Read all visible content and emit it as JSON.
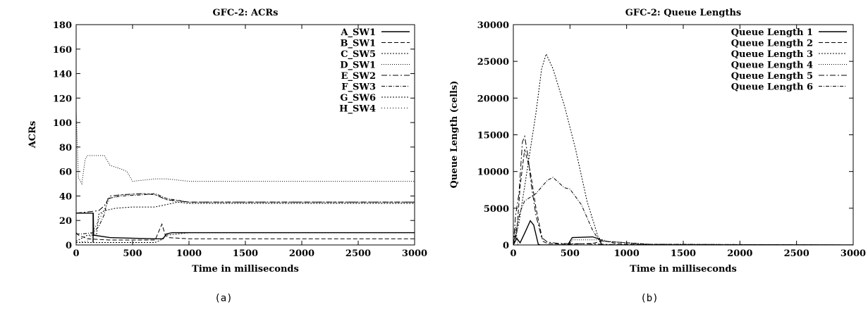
{
  "captions": [
    "(a)",
    "(b)"
  ],
  "chart_data": [
    {
      "type": "line",
      "title": "GFC-2: ACRs",
      "xlabel": "Time in milliseconds",
      "ylabel": "ACRs",
      "xlim": [
        0,
        3000
      ],
      "ylim": [
        0,
        180
      ],
      "xticks": [
        0,
        500,
        1000,
        1500,
        2000,
        2500,
        3000
      ],
      "yticks": [
        0,
        20,
        40,
        60,
        80,
        100,
        120,
        140,
        160,
        180
      ],
      "xtick_labels": [
        "0",
        "500",
        "1000",
        "1500",
        "2000",
        "2500",
        "3000"
      ],
      "ytick_labels": [
        "0",
        "20",
        "40",
        "60",
        "80",
        "100",
        "120",
        "140",
        "160",
        "180"
      ],
      "legend": "top-right",
      "series": [
        {
          "name": "A_SW1",
          "dash": "",
          "width": 1.4,
          "points": [
            [
              0,
              26
            ],
            [
              150,
              26
            ],
            [
              150,
              2
            ],
            [
              152,
              26
            ],
            [
              155,
              8
            ],
            [
              300,
              6
            ],
            [
              700,
              5
            ],
            [
              770,
              5
            ],
            [
              800,
              9
            ],
            [
              850,
              10
            ],
            [
              3000,
              10
            ]
          ]
        },
        {
          "name": "B_SW1",
          "dash": "6,3",
          "width": 1.0,
          "points": [
            [
              0,
              10
            ],
            [
              20,
              8
            ],
            [
              100,
              5
            ],
            [
              300,
              4
            ],
            [
              600,
              4
            ],
            [
              700,
              4
            ],
            [
              760,
              17
            ],
            [
              790,
              8
            ],
            [
              820,
              6
            ],
            [
              1000,
              5
            ],
            [
              3000,
              5
            ]
          ]
        },
        {
          "name": "C_SW5",
          "dash": "2,2",
          "width": 1.0,
          "points": [
            [
              0,
              2
            ],
            [
              200,
              2
            ],
            [
              700,
              2
            ],
            [
              750,
              4
            ],
            [
              800,
              8
            ],
            [
              900,
              9
            ],
            [
              1000,
              10
            ],
            [
              3000,
              10
            ]
          ]
        },
        {
          "name": "D_SW1",
          "dash": "1,2",
          "width": 1.0,
          "points": [
            [
              0,
              110
            ],
            [
              20,
              55
            ],
            [
              50,
              50
            ],
            [
              80,
              70
            ],
            [
              100,
              73
            ],
            [
              250,
              73
            ],
            [
              300,
              65
            ],
            [
              400,
              62
            ],
            [
              450,
              60
            ],
            [
              500,
              52
            ],
            [
              600,
              53
            ],
            [
              700,
              54
            ],
            [
              800,
              54
            ],
            [
              900,
              53
            ],
            [
              1000,
              52
            ],
            [
              3000,
              52
            ]
          ]
        },
        {
          "name": "E_SW2",
          "dash": "8,3,2,3",
          "width": 1.0,
          "points": [
            [
              0,
              26
            ],
            [
              100,
              27
            ],
            [
              200,
              28
            ],
            [
              250,
              32
            ],
            [
              300,
              40
            ],
            [
              400,
              41
            ],
            [
              600,
              42
            ],
            [
              700,
              41
            ],
            [
              800,
              37
            ],
            [
              900,
              36
            ],
            [
              1000,
              35
            ],
            [
              3000,
              35
            ]
          ]
        },
        {
          "name": "F_SW3",
          "dash": "5,2,1,2",
          "width": 1.0,
          "points": [
            [
              0,
              9
            ],
            [
              50,
              9
            ],
            [
              150,
              10
            ],
            [
              200,
              15
            ],
            [
              250,
              25
            ],
            [
              280,
              38
            ],
            [
              400,
              40
            ],
            [
              600,
              41
            ],
            [
              700,
              42
            ],
            [
              800,
              38
            ],
            [
              1000,
              35
            ],
            [
              3000,
              35
            ]
          ]
        },
        {
          "name": "G_SW6",
          "dash": "2,2",
          "width": 1.0,
          "points": [
            [
              0,
              3
            ],
            [
              100,
              8
            ],
            [
              180,
              8
            ],
            [
              200,
              25
            ],
            [
              250,
              28
            ],
            [
              350,
              30
            ],
            [
              500,
              31
            ],
            [
              700,
              31
            ],
            [
              800,
              33
            ],
            [
              900,
              35
            ],
            [
              1000,
              34
            ],
            [
              3000,
              34
            ]
          ]
        },
        {
          "name": "H_SW4",
          "dash": "1,3",
          "width": 1.0,
          "points": [
            [
              0,
              2
            ],
            [
              100,
              3
            ],
            [
              200,
              20
            ],
            [
              300,
              38
            ],
            [
              400,
              41
            ],
            [
              600,
              42
            ],
            [
              700,
              41
            ],
            [
              800,
              37
            ],
            [
              900,
              35
            ],
            [
              1000,
              34
            ],
            [
              3000,
              34
            ]
          ]
        }
      ]
    },
    {
      "type": "line",
      "title": "GFC-2: Queue Lengths",
      "xlabel": "Time in milliseconds",
      "ylabel": "Queue Length (cells)",
      "xlim": [
        0,
        3000
      ],
      "ylim": [
        0,
        30000
      ],
      "xticks": [
        0,
        500,
        1000,
        1500,
        2000,
        2500,
        3000
      ],
      "yticks": [
        0,
        5000,
        10000,
        15000,
        20000,
        25000,
        30000
      ],
      "xtick_labels": [
        "0",
        "500",
        "1000",
        "1500",
        "2000",
        "2500",
        "3000"
      ],
      "ytick_labels": [
        "0",
        "5000",
        "10000",
        "15000",
        "20000",
        "25000",
        "30000"
      ],
      "legend": "top-right",
      "series": [
        {
          "name": "Queue Length 1",
          "dash": "",
          "width": 1.4,
          "points": [
            [
              0,
              0
            ],
            [
              30,
              900
            ],
            [
              60,
              300
            ],
            [
              100,
              1600
            ],
            [
              150,
              3300
            ],
            [
              180,
              2700
            ],
            [
              220,
              100
            ],
            [
              240,
              0
            ],
            [
              480,
              0
            ],
            [
              520,
              1000
            ],
            [
              700,
              1100
            ],
            [
              760,
              800
            ],
            [
              780,
              0
            ],
            [
              3000,
              0
            ]
          ]
        },
        {
          "name": "Queue Length 2",
          "dash": "6,3",
          "width": 1.0,
          "points": [
            [
              0,
              0
            ],
            [
              30,
              1500
            ],
            [
              60,
              8000
            ],
            [
              100,
              13000
            ],
            [
              150,
              10000
            ],
            [
              200,
              5000
            ],
            [
              260,
              500
            ],
            [
              300,
              200
            ],
            [
              500,
              100
            ],
            [
              700,
              200
            ],
            [
              800,
              600
            ],
            [
              900,
              200
            ],
            [
              1000,
              100
            ],
            [
              1200,
              50
            ],
            [
              3000,
              0
            ]
          ]
        },
        {
          "name": "Queue Length 3",
          "dash": "2,2",
          "width": 1.0,
          "points": [
            [
              0,
              0
            ],
            [
              50,
              3000
            ],
            [
              100,
              8000
            ],
            [
              200,
              18000
            ],
            [
              250,
              24000
            ],
            [
              290,
              26000
            ],
            [
              350,
              24000
            ],
            [
              450,
              19000
            ],
            [
              550,
              13000
            ],
            [
              650,
              6000
            ],
            [
              750,
              1000
            ],
            [
              800,
              500
            ],
            [
              1000,
              300
            ],
            [
              1200,
              100
            ],
            [
              3000,
              0
            ]
          ]
        },
        {
          "name": "Queue Length 4",
          "dash": "1,2",
          "width": 1.0,
          "points": [
            [
              0,
              0
            ],
            [
              20,
              2500
            ],
            [
              40,
              0
            ],
            [
              100,
              0
            ],
            [
              500,
              0
            ],
            [
              520,
              700
            ],
            [
              800,
              700
            ],
            [
              820,
              500
            ],
            [
              1000,
              300
            ],
            [
              1100,
              100
            ],
            [
              3000,
              0
            ]
          ]
        },
        {
          "name": "Queue Length 5",
          "dash": "8,3,2,3",
          "width": 1.0,
          "points": [
            [
              0,
              0
            ],
            [
              20,
              4000
            ],
            [
              50,
              7000
            ],
            [
              80,
              14000
            ],
            [
              100,
              14800
            ],
            [
              130,
              12000
            ],
            [
              160,
              8000
            ],
            [
              200,
              4000
            ],
            [
              250,
              1000
            ],
            [
              300,
              400
            ],
            [
              400,
              200
            ],
            [
              800,
              100
            ],
            [
              1000,
              0
            ],
            [
              3000,
              0
            ]
          ]
        },
        {
          "name": "Queue Length 6",
          "dash": "5,2,1,2",
          "width": 1.0,
          "points": [
            [
              0,
              0
            ],
            [
              30,
              2500
            ],
            [
              60,
              4500
            ],
            [
              100,
              6000
            ],
            [
              200,
              7000
            ],
            [
              300,
              8800
            ],
            [
              350,
              9200
            ],
            [
              400,
              8500
            ],
            [
              450,
              7800
            ],
            [
              500,
              7600
            ],
            [
              600,
              5500
            ],
            [
              700,
              2000
            ],
            [
              750,
              800
            ],
            [
              800,
              500
            ],
            [
              900,
              400
            ],
            [
              1000,
              300
            ],
            [
              1200,
              100
            ],
            [
              3000,
              0
            ]
          ]
        }
      ]
    }
  ]
}
